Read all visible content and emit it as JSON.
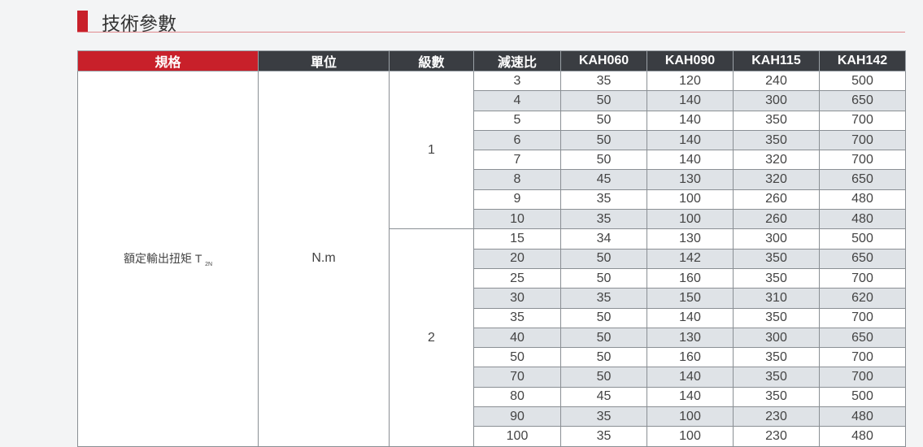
{
  "title": "技術參數",
  "table": {
    "headers": [
      "規格",
      "單位",
      "級數",
      "減速比",
      "KAH060",
      "KAH090",
      "KAH115",
      "KAH142"
    ],
    "spec": "額定輸出扭矩 T",
    "spec_sub": "2N",
    "unit": "N.m",
    "stages": [
      {
        "stage": "1",
        "rows": [
          [
            "3",
            "35",
            "120",
            "240",
            "500"
          ],
          [
            "4",
            "50",
            "140",
            "300",
            "650"
          ],
          [
            "5",
            "50",
            "140",
            "350",
            "700"
          ],
          [
            "6",
            "50",
            "140",
            "350",
            "700"
          ],
          [
            "7",
            "50",
            "140",
            "320",
            "700"
          ],
          [
            "8",
            "45",
            "130",
            "320",
            "650"
          ],
          [
            "9",
            "35",
            "100",
            "260",
            "480"
          ],
          [
            "10",
            "35",
            "100",
            "260",
            "480"
          ]
        ]
      },
      {
        "stage": "2",
        "rows": [
          [
            "15",
            "34",
            "130",
            "300",
            "500"
          ],
          [
            "20",
            "50",
            "142",
            "350",
            "650"
          ],
          [
            "25",
            "50",
            "160",
            "350",
            "700"
          ],
          [
            "30",
            "35",
            "150",
            "310",
            "620"
          ],
          [
            "35",
            "50",
            "140",
            "350",
            "700"
          ],
          [
            "40",
            "50",
            "130",
            "300",
            "650"
          ],
          [
            "50",
            "50",
            "160",
            "350",
            "700"
          ],
          [
            "70",
            "50",
            "140",
            "350",
            "700"
          ],
          [
            "80",
            "45",
            "140",
            "350",
            "500"
          ],
          [
            "90",
            "35",
            "100",
            "230",
            "480"
          ],
          [
            "100",
            "35",
            "100",
            "230",
            "480"
          ]
        ]
      }
    ]
  }
}
